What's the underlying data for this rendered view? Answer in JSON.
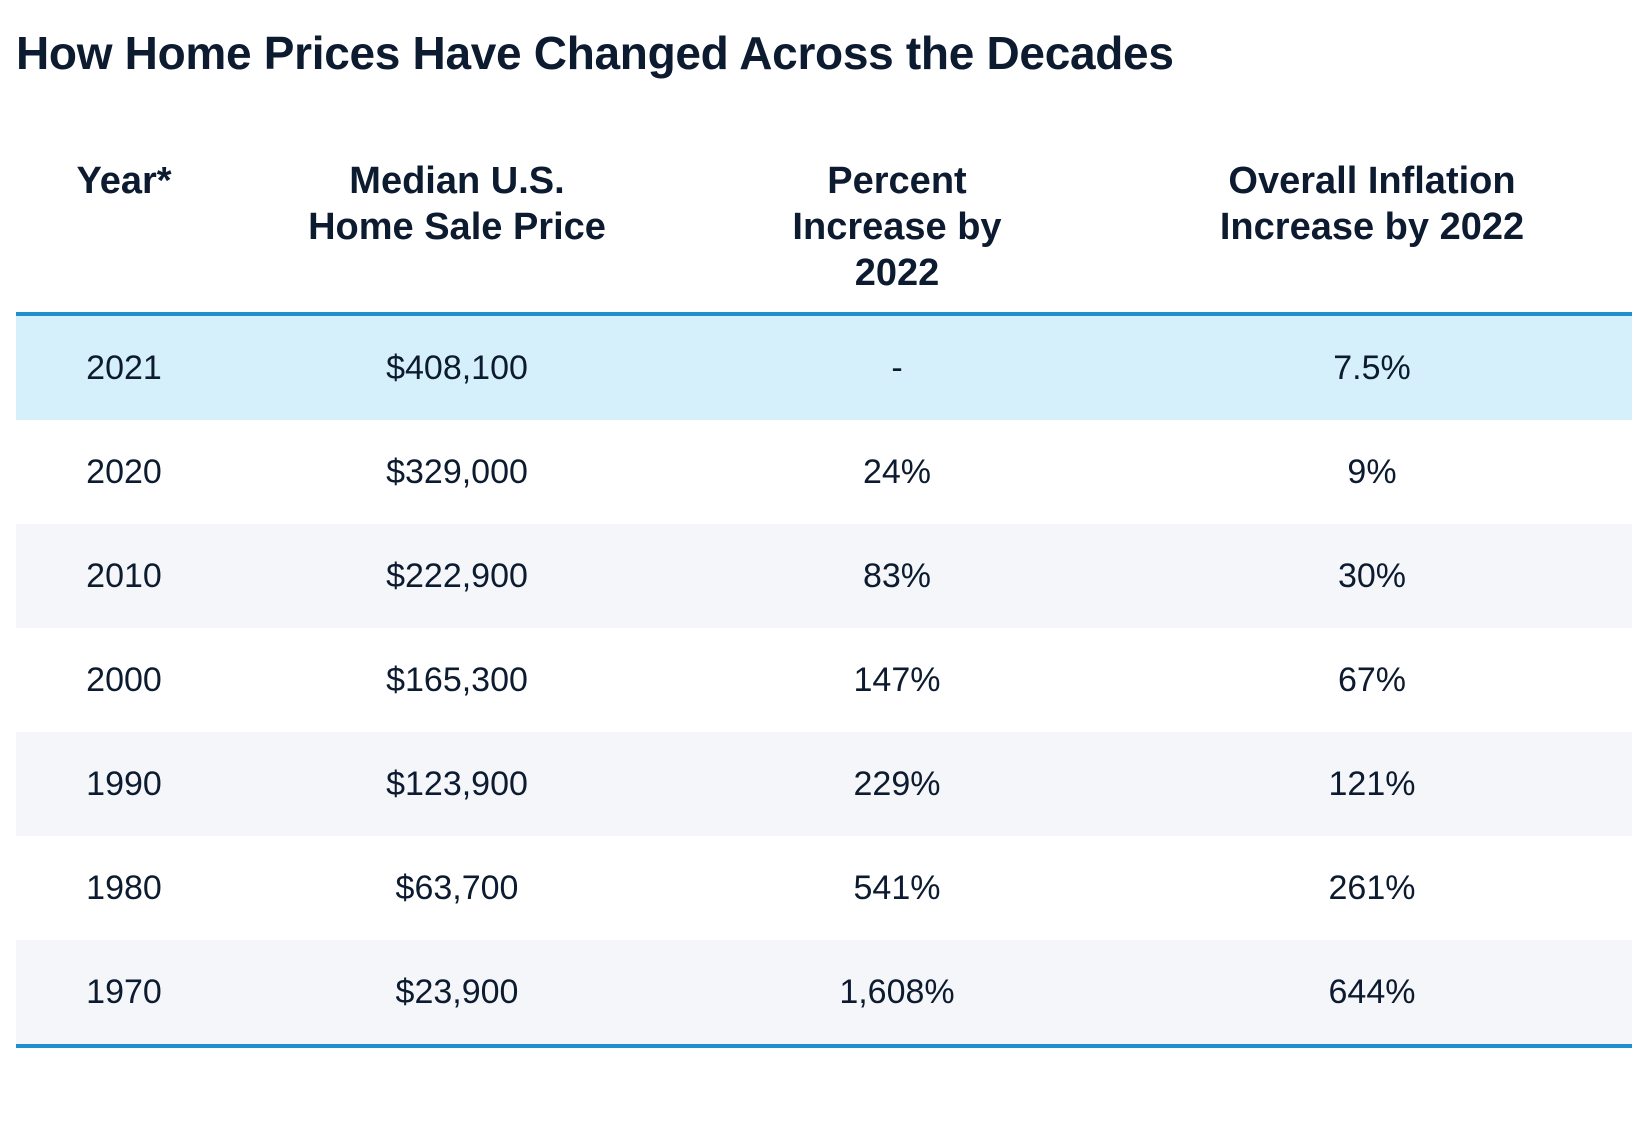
{
  "title": "How Home Prices Have Changed Across the Decades",
  "colors": {
    "accent_rule": "#1f8fd0",
    "highlight_row": "#d6f0fb",
    "shaded_row": "#f4f6f9",
    "text": "#0d1b30"
  },
  "chart_data": {
    "type": "table",
    "title": "How Home Prices Have Changed Across the Decades",
    "columns": [
      "Year*",
      "Median U.S. Home Sale Price",
      "Percent Increase by 2022",
      "Overall Inflation Increase by 2022"
    ],
    "header_lines": [
      [
        "Year*"
      ],
      [
        "Median U.S.",
        "Home Sale Price"
      ],
      [
        "Percent",
        "Increase by",
        "2022"
      ],
      [
        "Overall Inflation",
        "Increase by 2022"
      ]
    ],
    "rows": [
      [
        "2021",
        "$408,100",
        "-",
        "7.5%"
      ],
      [
        "2020",
        "$329,000",
        "24%",
        "9%"
      ],
      [
        "2010",
        "$222,900",
        "83%",
        "30%"
      ],
      [
        "2000",
        "$165,300",
        "147%",
        "67%"
      ],
      [
        "1990",
        "$123,900",
        "229%",
        "121%"
      ],
      [
        "1980",
        "$63,700",
        "541%",
        "261%"
      ],
      [
        "1970",
        "$23,900",
        "1,608%",
        "644%"
      ]
    ],
    "highlighted_row_index": 0
  }
}
